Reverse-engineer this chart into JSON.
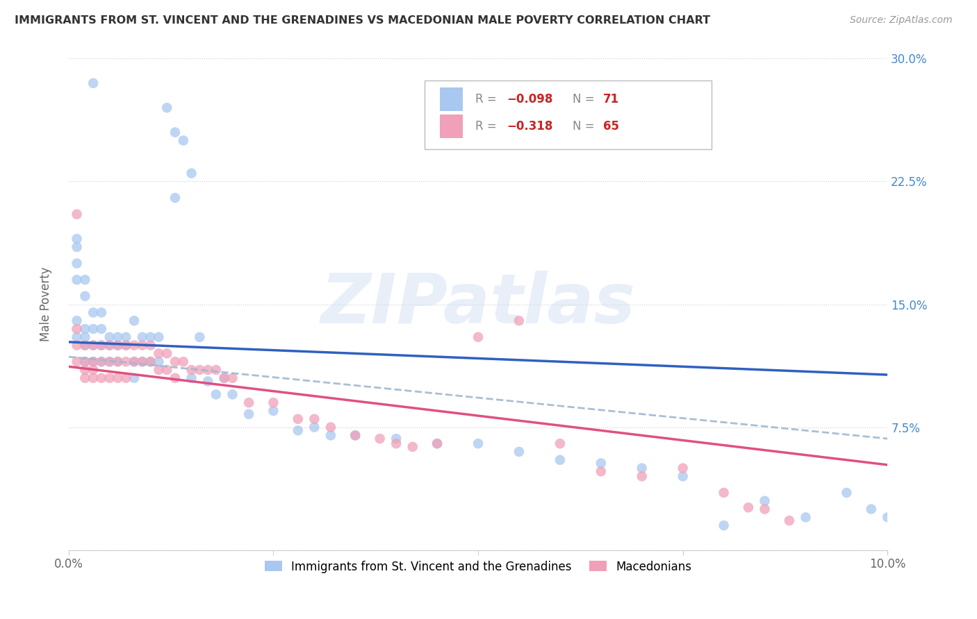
{
  "title": "IMMIGRANTS FROM ST. VINCENT AND THE GRENADINES VS MACEDONIAN MALE POVERTY CORRELATION CHART",
  "source": "Source: ZipAtlas.com",
  "ylabel": "Male Poverty",
  "legend_label_1": "Immigrants from St. Vincent and the Grenadines",
  "legend_label_2": "Macedonians",
  "color_blue": "#a8c8f0",
  "color_pink": "#f0a0b8",
  "color_trendline_blue": "#3060c0",
  "color_trendline_pink": "#e05080",
  "color_trendline_dashed": "#a0b8d0",
  "watermark": "ZIPatlas",
  "xlim": [
    0.0,
    0.1
  ],
  "ylim": [
    0.0,
    0.3
  ],
  "blue_x": [
    0.001,
    0.001,
    0.001,
    0.001,
    0.001,
    0.001,
    0.002,
    0.002,
    0.002,
    0.002,
    0.002,
    0.002,
    0.003,
    0.003,
    0.003,
    0.003,
    0.003,
    0.004,
    0.004,
    0.004,
    0.004,
    0.005,
    0.005,
    0.005,
    0.006,
    0.006,
    0.006,
    0.007,
    0.007,
    0.008,
    0.008,
    0.008,
    0.009,
    0.009,
    0.01,
    0.01,
    0.011,
    0.011,
    0.012,
    0.013,
    0.013,
    0.014,
    0.015,
    0.015,
    0.016,
    0.017,
    0.018,
    0.019,
    0.02,
    0.022,
    0.025,
    0.028,
    0.03,
    0.032,
    0.035,
    0.04,
    0.045,
    0.05,
    0.055,
    0.06,
    0.065,
    0.07,
    0.075,
    0.08,
    0.085,
    0.09,
    0.095,
    0.098,
    0.1
  ],
  "blue_y": [
    0.13,
    0.14,
    0.175,
    0.185,
    0.165,
    0.19,
    0.125,
    0.115,
    0.135,
    0.155,
    0.165,
    0.13,
    0.125,
    0.115,
    0.135,
    0.145,
    0.285,
    0.125,
    0.115,
    0.135,
    0.145,
    0.13,
    0.115,
    0.125,
    0.13,
    0.115,
    0.125,
    0.13,
    0.125,
    0.14,
    0.115,
    0.105,
    0.13,
    0.115,
    0.13,
    0.115,
    0.13,
    0.115,
    0.27,
    0.255,
    0.215,
    0.25,
    0.23,
    0.105,
    0.13,
    0.103,
    0.095,
    0.105,
    0.095,
    0.083,
    0.085,
    0.073,
    0.075,
    0.07,
    0.07,
    0.068,
    0.065,
    0.065,
    0.06,
    0.055,
    0.053,
    0.05,
    0.045,
    0.015,
    0.03,
    0.02,
    0.035,
    0.025,
    0.02
  ],
  "pink_x": [
    0.001,
    0.001,
    0.001,
    0.001,
    0.002,
    0.002,
    0.002,
    0.002,
    0.003,
    0.003,
    0.003,
    0.003,
    0.004,
    0.004,
    0.004,
    0.005,
    0.005,
    0.005,
    0.006,
    0.006,
    0.006,
    0.007,
    0.007,
    0.007,
    0.008,
    0.008,
    0.009,
    0.009,
    0.01,
    0.01,
    0.011,
    0.011,
    0.012,
    0.012,
    0.013,
    0.013,
    0.014,
    0.015,
    0.016,
    0.017,
    0.018,
    0.019,
    0.02,
    0.022,
    0.025,
    0.028,
    0.03,
    0.032,
    0.035,
    0.038,
    0.04,
    0.042,
    0.045,
    0.05,
    0.055,
    0.06,
    0.065,
    0.07,
    0.075,
    0.08,
    0.083,
    0.085,
    0.088
  ],
  "pink_y": [
    0.135,
    0.125,
    0.115,
    0.205,
    0.125,
    0.115,
    0.105,
    0.11,
    0.125,
    0.115,
    0.105,
    0.11,
    0.125,
    0.115,
    0.105,
    0.125,
    0.115,
    0.105,
    0.125,
    0.115,
    0.105,
    0.125,
    0.115,
    0.105,
    0.125,
    0.115,
    0.125,
    0.115,
    0.125,
    0.115,
    0.12,
    0.11,
    0.12,
    0.11,
    0.115,
    0.105,
    0.115,
    0.11,
    0.11,
    0.11,
    0.11,
    0.105,
    0.105,
    0.09,
    0.09,
    0.08,
    0.08,
    0.075,
    0.07,
    0.068,
    0.065,
    0.063,
    0.065,
    0.13,
    0.14,
    0.065,
    0.048,
    0.045,
    0.05,
    0.035,
    0.026,
    0.025,
    0.018
  ]
}
